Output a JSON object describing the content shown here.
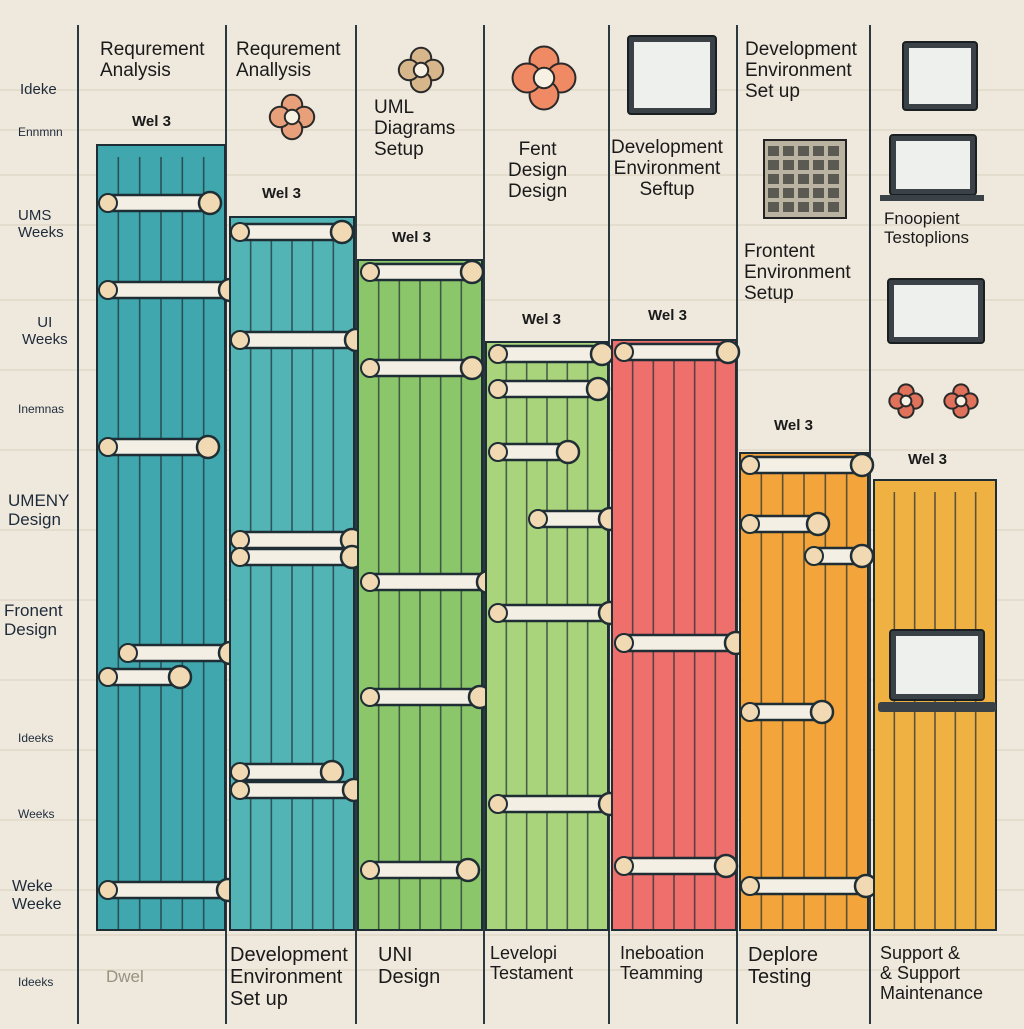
{
  "row_labels": [
    {
      "id": "r1",
      "text": "Ideke"
    },
    {
      "id": "r2",
      "text": "Ennmnn"
    },
    {
      "id": "r3",
      "text": "UMS\nWeeks"
    },
    {
      "id": "r4",
      "text": "UI\nWeeks"
    },
    {
      "id": "r5",
      "text": "Inemnas"
    },
    {
      "id": "r6",
      "text": "UMENY\nDesign"
    },
    {
      "id": "r7",
      "text": "Fronent\nDesign"
    },
    {
      "id": "r8",
      "text": "Ideeks"
    },
    {
      "id": "r9",
      "text": "Weeks"
    },
    {
      "id": "r10",
      "text": "Weke\nWeeke"
    },
    {
      "id": "r11",
      "text": "Ideeks"
    }
  ],
  "column_titles": [
    {
      "id": "c1",
      "text": "Requrement\nAnalysis"
    },
    {
      "id": "c2",
      "text": "Requrement\nAnallysis"
    },
    {
      "id": "c3",
      "text": "UML\nDiagrams\nSetup"
    },
    {
      "id": "c4",
      "text": "Fent\nDesign\nDesign"
    },
    {
      "id": "c5",
      "text": "Development\nEnvironment\nSeftup"
    },
    {
      "id": "c6",
      "text": "Development\nEnvironment\nSet up"
    },
    {
      "id": "c7",
      "text": "Frontent\nEnvironment\nSetup"
    },
    {
      "id": "c8",
      "text": "Fnoopient\nTestoplions"
    }
  ],
  "week_labels": [
    "Wel 3",
    "Wel 3",
    "Wel 3",
    "Wel 3",
    "Wel 3",
    "Wel 3",
    "Wel 3",
    "WEl 3"
  ],
  "phase_labels": [
    {
      "id": "p1",
      "text": "Dwel"
    },
    {
      "id": "p2",
      "text": "Development\nEnvironment\nSet up"
    },
    {
      "id": "p3",
      "text": "UNI\nDesign"
    },
    {
      "id": "p4",
      "text": "Levelopi\nTestament"
    },
    {
      "id": "p5",
      "text": "Ineboation\nTeamming"
    },
    {
      "id": "p6",
      "text": "Deplore\nTesting"
    },
    {
      "id": "p7",
      "text": "Support &\n& Support\nMaintenance"
    }
  ],
  "colors": {
    "background": "#efe9dd",
    "teal": "#3fa7ad",
    "teal2": "#52b4b5",
    "green": "#8cc66b",
    "lightgreen": "#a9d47c",
    "red": "#ee6f6b",
    "orange": "#f3a43a",
    "orange2": "#f0b143",
    "outline": "#1f2e34",
    "knob": "#f1d9b3"
  },
  "icons": [
    "flower-icon",
    "flower-icon",
    "flower-icon",
    "monitor-icon",
    "monitor-icon",
    "calendar-icon",
    "laptop-icon",
    "monitor-icon",
    "berry-icon",
    "laptop-icon"
  ]
}
